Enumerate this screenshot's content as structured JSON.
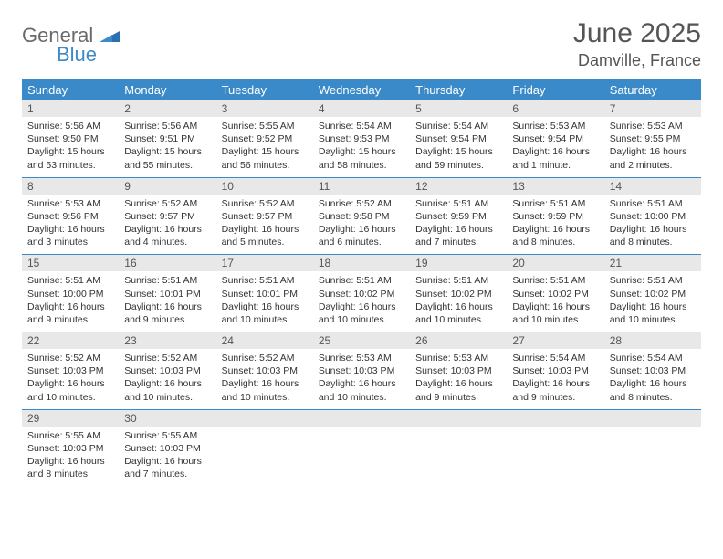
{
  "logo": {
    "line1": "General",
    "line2": "Blue"
  },
  "title": "June 2025",
  "location": "Damville, France",
  "colors": {
    "header_bar": "#3a8ac9",
    "daynum_bg": "#e8e8e8",
    "week_divider": "#3a8ac9",
    "text": "#333333",
    "title_text": "#555555"
  },
  "weekdays": [
    "Sunday",
    "Monday",
    "Tuesday",
    "Wednesday",
    "Thursday",
    "Friday",
    "Saturday"
  ],
  "weeks": [
    [
      {
        "n": "1",
        "sunrise": "5:56 AM",
        "sunset": "9:50 PM",
        "daylight": "15 hours and 53 minutes."
      },
      {
        "n": "2",
        "sunrise": "5:56 AM",
        "sunset": "9:51 PM",
        "daylight": "15 hours and 55 minutes."
      },
      {
        "n": "3",
        "sunrise": "5:55 AM",
        "sunset": "9:52 PM",
        "daylight": "15 hours and 56 minutes."
      },
      {
        "n": "4",
        "sunrise": "5:54 AM",
        "sunset": "9:53 PM",
        "daylight": "15 hours and 58 minutes."
      },
      {
        "n": "5",
        "sunrise": "5:54 AM",
        "sunset": "9:54 PM",
        "daylight": "15 hours and 59 minutes."
      },
      {
        "n": "6",
        "sunrise": "5:53 AM",
        "sunset": "9:54 PM",
        "daylight": "16 hours and 1 minute."
      },
      {
        "n": "7",
        "sunrise": "5:53 AM",
        "sunset": "9:55 PM",
        "daylight": "16 hours and 2 minutes."
      }
    ],
    [
      {
        "n": "8",
        "sunrise": "5:53 AM",
        "sunset": "9:56 PM",
        "daylight": "16 hours and 3 minutes."
      },
      {
        "n": "9",
        "sunrise": "5:52 AM",
        "sunset": "9:57 PM",
        "daylight": "16 hours and 4 minutes."
      },
      {
        "n": "10",
        "sunrise": "5:52 AM",
        "sunset": "9:57 PM",
        "daylight": "16 hours and 5 minutes."
      },
      {
        "n": "11",
        "sunrise": "5:52 AM",
        "sunset": "9:58 PM",
        "daylight": "16 hours and 6 minutes."
      },
      {
        "n": "12",
        "sunrise": "5:51 AM",
        "sunset": "9:59 PM",
        "daylight": "16 hours and 7 minutes."
      },
      {
        "n": "13",
        "sunrise": "5:51 AM",
        "sunset": "9:59 PM",
        "daylight": "16 hours and 8 minutes."
      },
      {
        "n": "14",
        "sunrise": "5:51 AM",
        "sunset": "10:00 PM",
        "daylight": "16 hours and 8 minutes."
      }
    ],
    [
      {
        "n": "15",
        "sunrise": "5:51 AM",
        "sunset": "10:00 PM",
        "daylight": "16 hours and 9 minutes."
      },
      {
        "n": "16",
        "sunrise": "5:51 AM",
        "sunset": "10:01 PM",
        "daylight": "16 hours and 9 minutes."
      },
      {
        "n": "17",
        "sunrise": "5:51 AM",
        "sunset": "10:01 PM",
        "daylight": "16 hours and 10 minutes."
      },
      {
        "n": "18",
        "sunrise": "5:51 AM",
        "sunset": "10:02 PM",
        "daylight": "16 hours and 10 minutes."
      },
      {
        "n": "19",
        "sunrise": "5:51 AM",
        "sunset": "10:02 PM",
        "daylight": "16 hours and 10 minutes."
      },
      {
        "n": "20",
        "sunrise": "5:51 AM",
        "sunset": "10:02 PM",
        "daylight": "16 hours and 10 minutes."
      },
      {
        "n": "21",
        "sunrise": "5:51 AM",
        "sunset": "10:02 PM",
        "daylight": "16 hours and 10 minutes."
      }
    ],
    [
      {
        "n": "22",
        "sunrise": "5:52 AM",
        "sunset": "10:03 PM",
        "daylight": "16 hours and 10 minutes."
      },
      {
        "n": "23",
        "sunrise": "5:52 AM",
        "sunset": "10:03 PM",
        "daylight": "16 hours and 10 minutes."
      },
      {
        "n": "24",
        "sunrise": "5:52 AM",
        "sunset": "10:03 PM",
        "daylight": "16 hours and 10 minutes."
      },
      {
        "n": "25",
        "sunrise": "5:53 AM",
        "sunset": "10:03 PM",
        "daylight": "16 hours and 10 minutes."
      },
      {
        "n": "26",
        "sunrise": "5:53 AM",
        "sunset": "10:03 PM",
        "daylight": "16 hours and 9 minutes."
      },
      {
        "n": "27",
        "sunrise": "5:54 AM",
        "sunset": "10:03 PM",
        "daylight": "16 hours and 9 minutes."
      },
      {
        "n": "28",
        "sunrise": "5:54 AM",
        "sunset": "10:03 PM",
        "daylight": "16 hours and 8 minutes."
      }
    ],
    [
      {
        "n": "29",
        "sunrise": "5:55 AM",
        "sunset": "10:03 PM",
        "daylight": "16 hours and 8 minutes."
      },
      {
        "n": "30",
        "sunrise": "5:55 AM",
        "sunset": "10:03 PM",
        "daylight": "16 hours and 7 minutes."
      },
      {
        "empty": true
      },
      {
        "empty": true
      },
      {
        "empty": true
      },
      {
        "empty": true
      },
      {
        "empty": true
      }
    ]
  ],
  "labels": {
    "sunrise": "Sunrise:",
    "sunset": "Sunset:",
    "daylight": "Daylight:"
  }
}
